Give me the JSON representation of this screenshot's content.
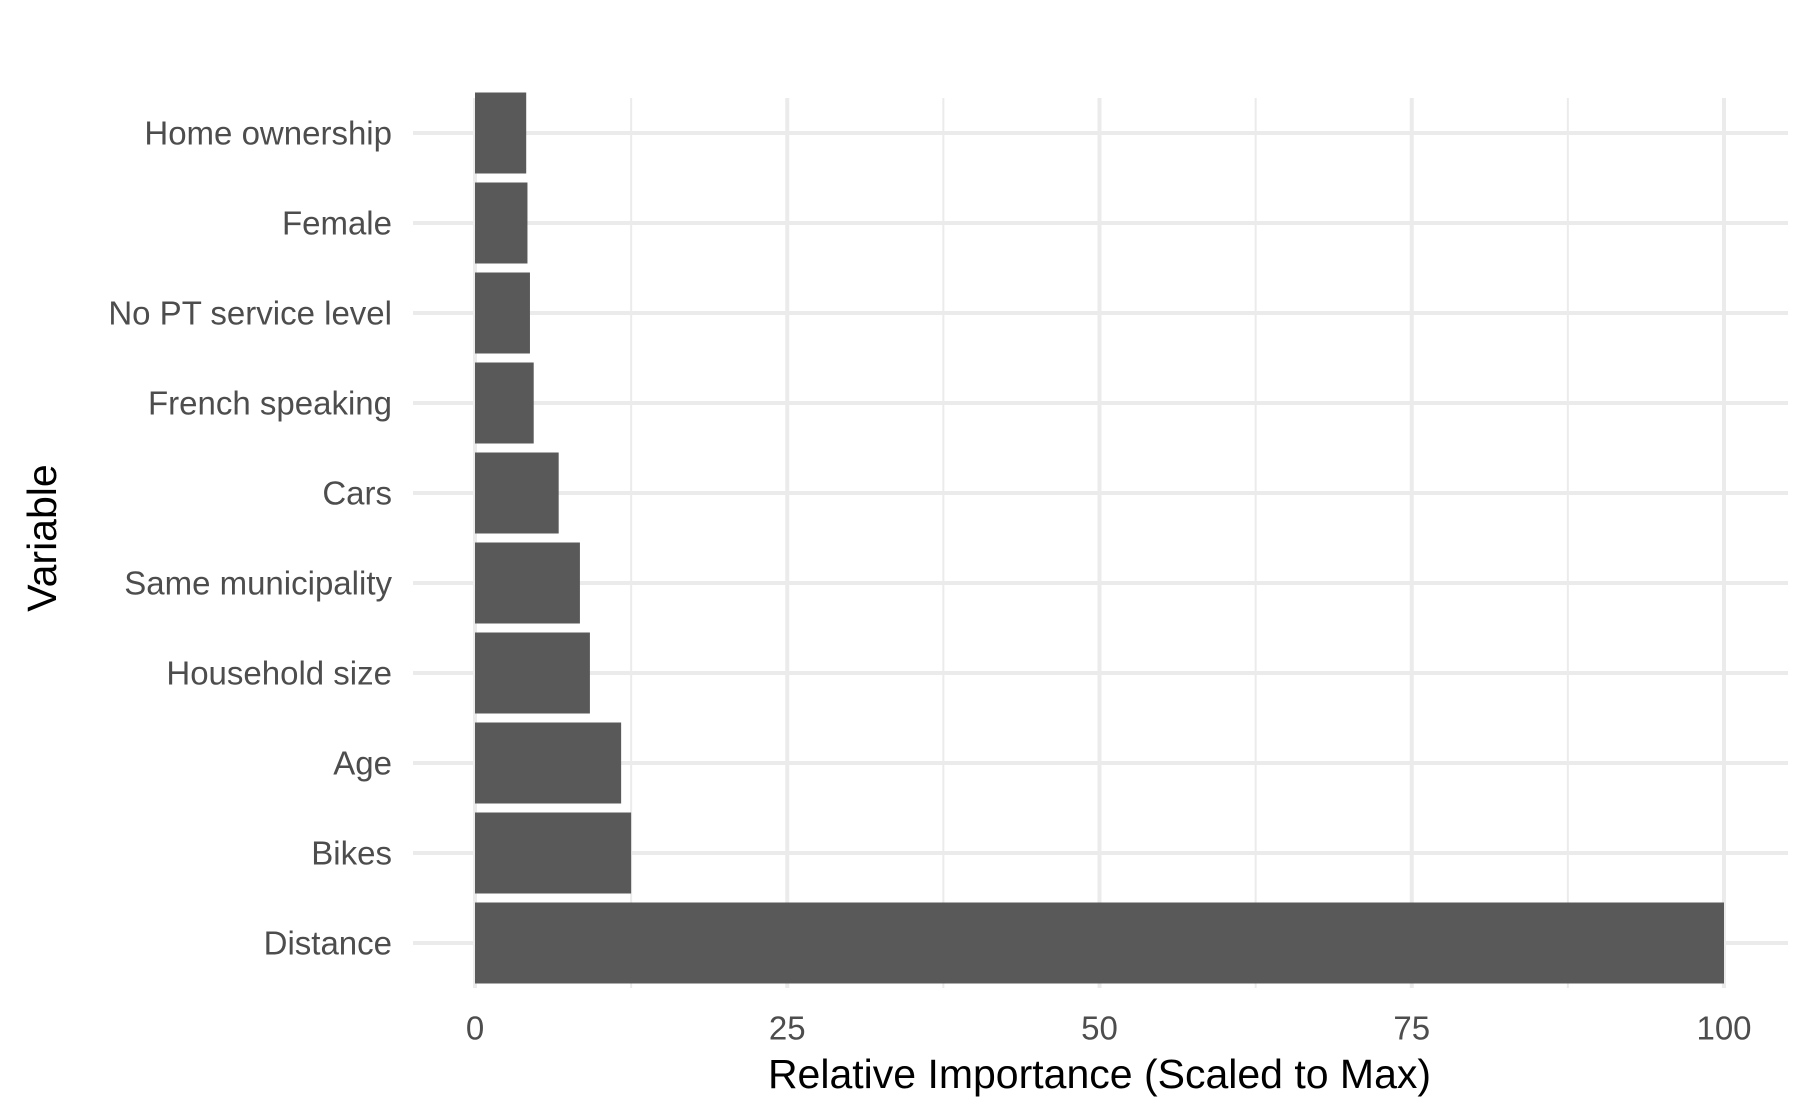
{
  "chart_data": {
    "type": "bar",
    "orientation": "horizontal",
    "categories": [
      "Distance",
      "Bikes",
      "Age",
      "Household size",
      "Same municipality",
      "Cars",
      "French speaking",
      "No PT service level",
      "Female",
      "Home ownership"
    ],
    "values": [
      100,
      12.5,
      11.7,
      9.2,
      8.4,
      6.7,
      4.7,
      4.4,
      4.2,
      4.1
    ],
    "xlabel": "Relative Importance (Scaled to Max)",
    "ylabel": "Variable",
    "xlim": [
      0,
      100
    ],
    "xticks": [
      0,
      25,
      50,
      75,
      100
    ],
    "xtick_labels": [
      "0",
      "25",
      "50",
      "75",
      "100"
    ],
    "grid": true,
    "bar_color": "#595959",
    "grid_color": "#ebebeb",
    "legend": "none"
  }
}
